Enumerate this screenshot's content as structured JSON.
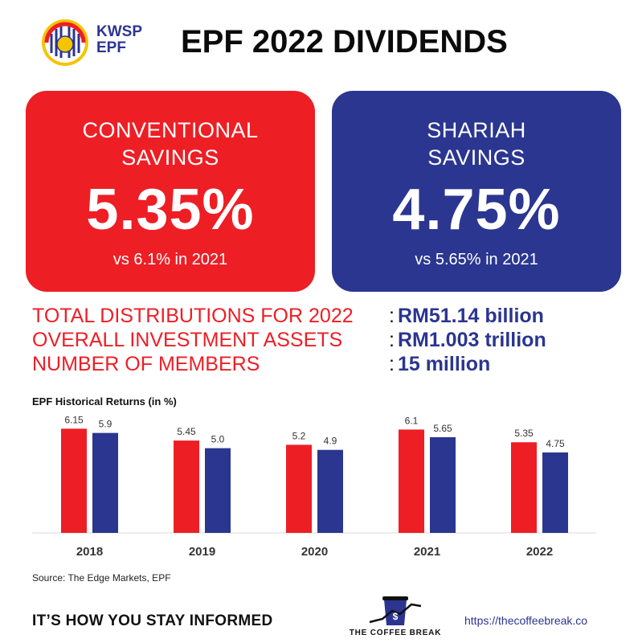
{
  "header": {
    "logo_text_line1": "KWSP",
    "logo_text_line2": "EPF",
    "title": "EPF 2022 DIVIDENDS"
  },
  "cards": {
    "conventional": {
      "label_line1": "CONVENTIONAL",
      "label_line2": "SAVINGS",
      "rate": "5.35%",
      "comparison": "vs 6.1% in 2021",
      "color": "#ee1e25"
    },
    "shariah": {
      "label_line1": "SHARIAH",
      "label_line2": "SAVINGS",
      "rate": "4.75%",
      "comparison": "vs 5.65% in 2021",
      "color": "#2b3690"
    }
  },
  "stats": [
    {
      "label": "TOTAL DISTRIBUTIONS FOR 2022",
      "value": "RM51.14 billion"
    },
    {
      "label": "OVERALL INVESTMENT ASSETS",
      "value": "RM1.003 trillion"
    },
    {
      "label": "NUMBER OF MEMBERS",
      "value": "15 million"
    }
  ],
  "chart_data": {
    "type": "bar",
    "title": "EPF  Historical Returns (in %)",
    "categories": [
      "2018",
      "2019",
      "2020",
      "2021",
      "2022"
    ],
    "series": [
      {
        "values": [
          6.15,
          5.45,
          5.2,
          6.1,
          5.35
        ],
        "labels": [
          "6.15",
          "5.45",
          "5.2",
          "6.1",
          "5.35"
        ],
        "color": "#ee1e25"
      },
      {
        "values": [
          5.9,
          5.0,
          4.9,
          5.65,
          4.75
        ],
        "labels": [
          "5.9",
          "5.0",
          "4.9",
          "5.65",
          "4.75"
        ],
        "color": "#2b3690"
      }
    ],
    "ylim": [
      0,
      6.5
    ],
    "grid": false,
    "legend": "none"
  },
  "source": "Source: The Edge Markets, EPF",
  "footer": {
    "tagline": "IT’S HOW YOU STAY INFORMED",
    "brand_name": "THE COFFEE BREAK",
    "url": "https://thecoffeebreak.co"
  },
  "icons": [
    "kwsp-emblem-icon",
    "coffee-cup-logo-icon"
  ]
}
